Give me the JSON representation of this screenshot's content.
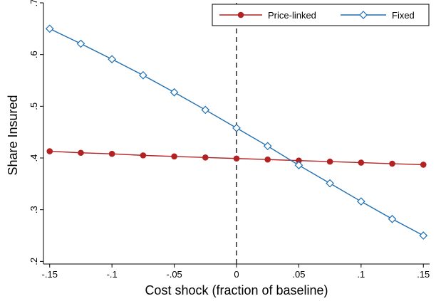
{
  "chart_data": {
    "type": "line",
    "title": "",
    "xlabel": "Cost shock (fraction of baseline)",
    "ylabel": "Share Insured",
    "xlim": [
      -0.155,
      0.155
    ],
    "ylim": [
      0.195,
      0.7
    ],
    "x_ticks": [
      -0.15,
      -0.1,
      -0.05,
      0,
      0.05,
      0.1,
      0.15
    ],
    "x_tick_labels": [
      "-.15",
      "-.1",
      "-.05",
      "0",
      ".05",
      ".1",
      ".15"
    ],
    "y_ticks": [
      0.2,
      0.3,
      0.4,
      0.5,
      0.6,
      0.7
    ],
    "y_tick_labels": [
      ".2",
      ".3",
      ".4",
      ".5",
      ".6",
      ".7"
    ],
    "grid": false,
    "reference_line": {
      "x": 0,
      "style": "dashed"
    },
    "legend_position": "top-right",
    "x": [
      -0.15,
      -0.125,
      -0.1,
      -0.075,
      -0.05,
      -0.025,
      0,
      0.025,
      0.05,
      0.075,
      0.1,
      0.125,
      0.15
    ],
    "series": [
      {
        "name": "Price-linked",
        "color": "#b22222",
        "marker": "filled-circle",
        "values": [
          0.413,
          0.41,
          0.408,
          0.405,
          0.403,
          0.401,
          0.399,
          0.397,
          0.395,
          0.393,
          0.391,
          0.389,
          0.387
        ]
      },
      {
        "name": "Fixed",
        "color": "#1f6fb2",
        "marker": "hollow-diamond",
        "values": [
          0.65,
          0.621,
          0.591,
          0.56,
          0.527,
          0.493,
          0.458,
          0.423,
          0.386,
          0.351,
          0.316,
          0.282,
          0.25
        ]
      }
    ]
  }
}
